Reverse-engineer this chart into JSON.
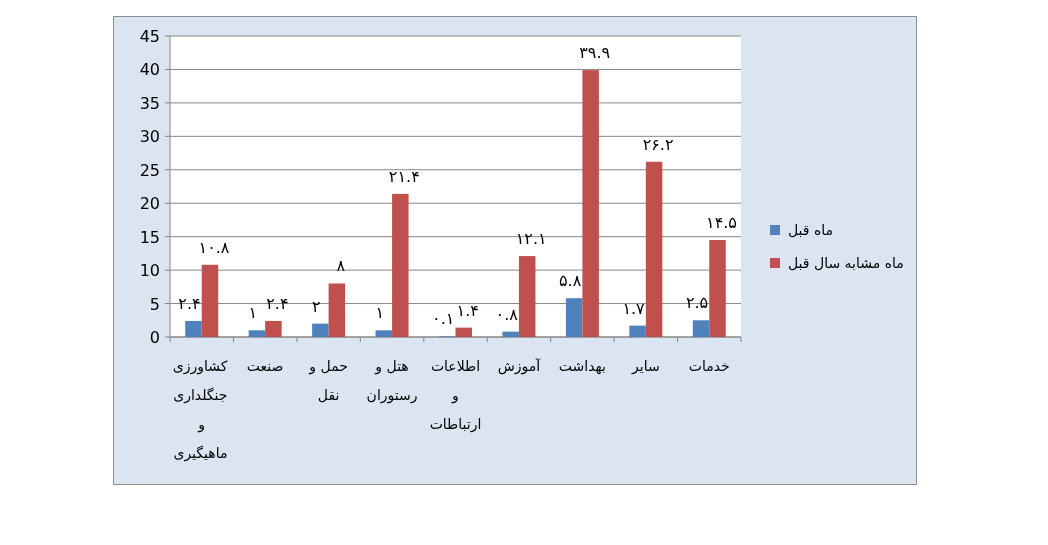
{
  "chart_data": {
    "type": "bar",
    "categories": [
      "کشاورزی جنگلداری و ماهیگیری",
      "صنعت",
      "حمل و نقل",
      "هتل و رستوران",
      "اطلاعات و ارتباطات",
      "آموزش",
      "بهداشت",
      "سایر",
      "خدمات"
    ],
    "series": [
      {
        "name": "ماه قبل",
        "color": "#4f81bd",
        "values": [
          2.4,
          1,
          2,
          1,
          0.1,
          0.8,
          5.8,
          1.7,
          2.5
        ],
        "value_labels": [
          "۲.۴",
          "۱",
          "۲",
          "۱",
          "۰.۱",
          "۰.۸",
          "۵.۸",
          "۱.۷",
          "۲.۵"
        ]
      },
      {
        "name": "ماه مشابه سال قبل",
        "color": "#c0504d",
        "values": [
          10.8,
          2.4,
          8,
          21.4,
          1.4,
          12.1,
          39.9,
          26.2,
          14.5
        ],
        "value_labels": [
          "۱۰.۸",
          "۲.۴",
          "۸",
          "۲۱.۴",
          "۱.۴",
          "۱۲.۱",
          "۳۹.۹",
          "۲۶.۲",
          "۱۴.۵"
        ]
      }
    ],
    "ylim": [
      0,
      45
    ],
    "yticks": [
      0,
      5,
      10,
      15,
      20,
      25,
      30,
      35,
      40,
      45
    ],
    "grid": "y",
    "legend": "right"
  }
}
